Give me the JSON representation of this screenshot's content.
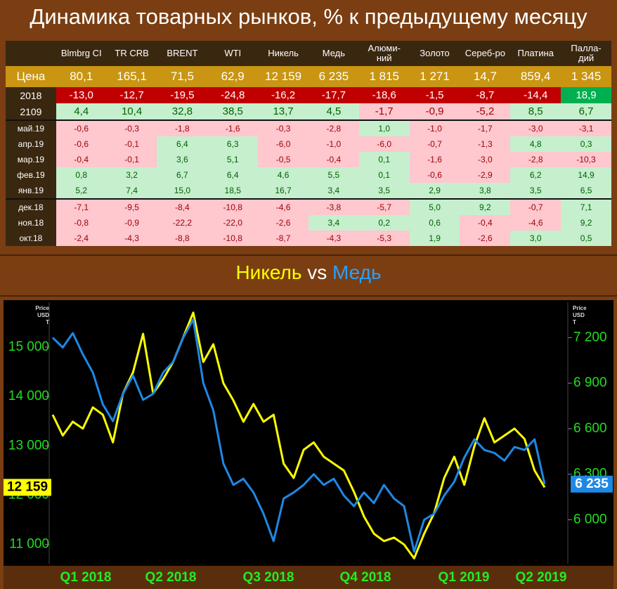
{
  "title": "Динамика товарных рынков, % к предыдущему месяцу",
  "table": {
    "columns": [
      "Blmbrg CI",
      "TR CRB",
      "BRENT",
      "WTI",
      "Никель",
      "Медь",
      "Алюми-\nний",
      "Золото",
      "Сереб-ро",
      "Платина",
      "Палла-\nдий"
    ],
    "rows": [
      {
        "label": "Цена",
        "cells": [
          "80,1",
          "165,1",
          "71,5",
          "62,9",
          "12 159",
          "6 235",
          "1 815",
          "1 271",
          "14,7",
          "859,4",
          "1 345"
        ]
      },
      {
        "label": "2018",
        "cells": [
          "-13,0",
          "-12,7",
          "-19,5",
          "-24,8",
          "-16,2",
          "-17,7",
          "-18,6",
          "-1,5",
          "-8,7",
          "-14,4",
          "18,9"
        ]
      },
      {
        "label": "2109",
        "cells": [
          "4,4",
          "10,4",
          "32,8",
          "38,5",
          "13,7",
          "4,5",
          "-1,7",
          "-0,9",
          "-5,2",
          "8,5",
          "6,7"
        ]
      },
      {
        "label": "май.19",
        "cells": [
          "-0,6",
          "-0,3",
          "-1,8",
          "-1,6",
          "-0,3",
          "-2,8",
          "1,0",
          "-1,0",
          "-1,7",
          "-3,0",
          "-3,1"
        ]
      },
      {
        "label": "апр.19",
        "cells": [
          "-0,6",
          "-0,1",
          "6,4",
          "6,3",
          "-6,0",
          "-1,0",
          "-6,0",
          "-0,7",
          "-1,3",
          "4,8",
          "0,3"
        ]
      },
      {
        "label": "мар.19",
        "cells": [
          "-0,4",
          "-0,1",
          "3,6",
          "5,1",
          "-0,5",
          "-0,4",
          "0,1",
          "-1,6",
          "-3,0",
          "-2,8",
          "-10,3"
        ]
      },
      {
        "label": "фев.19",
        "cells": [
          "0,8",
          "3,2",
          "6,7",
          "6,4",
          "4,6",
          "5,5",
          "0,1",
          "-0,6",
          "-2,9",
          "6,2",
          "14,9"
        ]
      },
      {
        "label": "янв.19",
        "cells": [
          "5,2",
          "7,4",
          "15,0",
          "18,5",
          "16,7",
          "3,4",
          "3,5",
          "2,9",
          "3,8",
          "3,5",
          "6,5"
        ]
      },
      {
        "label": "дек.18",
        "cells": [
          "-7,1",
          "-9,5",
          "-8,4",
          "-10,8",
          "-4,6",
          "-3,8",
          "-5,7",
          "5,0",
          "9,2",
          "-0,7",
          "7,1"
        ]
      },
      {
        "label": "ноя.18",
        "cells": [
          "-0,8",
          "-0,9",
          "-22,2",
          "-22,0",
          "-2,6",
          "3,4",
          "0,2",
          "0,6",
          "-0,4",
          "-4,6",
          "9,2"
        ]
      },
      {
        "label": "окт.18",
        "cells": [
          "-2,4",
          "-4,3",
          "-8,8",
          "-10,8",
          "-8,7",
          "-4,3",
          "-5,3",
          "1,9",
          "-2,6",
          "3,0",
          "0,5"
        ]
      }
    ]
  },
  "chart_data": {
    "type": "line",
    "title_joiner": "vs",
    "x_labels": [
      "Q1 2018",
      "Q2 2018",
      "Q3 2018",
      "Q4 2018",
      "Q1 2019",
      "Q2 2019"
    ],
    "ylabel": [
      "Price",
      "USD",
      "T"
    ],
    "y2label": [
      "Price",
      "USD",
      "T"
    ],
    "ylim": [
      10640,
      15840
    ],
    "yticks": [
      {
        "value": 11000,
        "label": "11 000"
      },
      {
        "value": 12000,
        "label": "12 000"
      },
      {
        "value": 13000,
        "label": "13 000"
      },
      {
        "value": 14000,
        "label": "14 000"
      },
      {
        "value": 15000,
        "label": "15 000"
      }
    ],
    "y2lim": [
      5720,
      7410
    ],
    "y2ticks": [
      {
        "value": 6000,
        "label": "6 000"
      },
      {
        "value": 6300,
        "label": "6 300"
      },
      {
        "value": 6600,
        "label": "6 600"
      },
      {
        "value": 6900,
        "label": "6 900"
      },
      {
        "value": 7200,
        "label": "7 200"
      }
    ],
    "series": [
      {
        "name": "Никель",
        "color": "#ffff00",
        "value_label": "12 159",
        "values": [
          13630,
          13210,
          13490,
          13350,
          13780,
          13630,
          13070,
          14060,
          14490,
          15270,
          14060,
          14350,
          14700,
          15200,
          15700,
          14700,
          15060,
          14270,
          13920,
          13490,
          13850,
          13490,
          13630,
          12640,
          12350,
          12920,
          13070,
          12780,
          12640,
          12500,
          12070,
          11570,
          11220,
          11070,
          11140,
          11000,
          10720,
          11220,
          11640,
          12350,
          12780,
          12210,
          12990,
          13560,
          13070,
          13210,
          13350,
          13140,
          12500,
          12159
        ]
      },
      {
        "name": "Медь",
        "color": "#1e88e5",
        "axis": "y2",
        "value_label": "6 235",
        "values": [
          7200,
          7135,
          7230,
          7090,
          6970,
          6760,
          6650,
          6830,
          6950,
          6790,
          6830,
          6970,
          7040,
          7200,
          7320,
          6900,
          6720,
          6370,
          6230,
          6270,
          6180,
          6040,
          5860,
          6140,
          6180,
          6230,
          6300,
          6230,
          6270,
          6160,
          6090,
          6180,
          6110,
          6230,
          6140,
          6090,
          5790,
          6000,
          6040,
          6160,
          6250,
          6410,
          6530,
          6460,
          6440,
          6390,
          6480,
          6460,
          6530,
          6235
        ]
      }
    ]
  }
}
